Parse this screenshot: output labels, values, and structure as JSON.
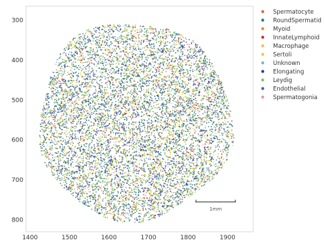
{
  "chart_data": {
    "type": "scatter",
    "title": "",
    "xlabel": "",
    "ylabel": "",
    "xlim": [
      1390,
      1965
    ],
    "ylim": [
      265,
      830
    ],
    "y_inverted": true,
    "grid": false,
    "legend_placement": "outside-right",
    "x_ticks": [
      1400,
      1500,
      1600,
      1700,
      1800,
      1900
    ],
    "y_ticks": [
      300,
      400,
      500,
      600,
      700,
      800
    ],
    "tissue": {
      "center_x": 1665,
      "center_y": 553,
      "radius_x": 245,
      "radius_y": 248
    },
    "series": [
      {
        "name": "Spermatocyte",
        "color": "#e06a3b"
      },
      {
        "name": "RoundSpermatid",
        "color": "#2a7f6f"
      },
      {
        "name": "Myoid",
        "color": "#f08a2a"
      },
      {
        "name": "InnateLymphoid",
        "color": "#c8322d"
      },
      {
        "name": "Macrophage",
        "color": "#f0c05a"
      },
      {
        "name": "Sertoli",
        "color": "#d8d43e"
      },
      {
        "name": "Unknown",
        "color": "#6fb7c9"
      },
      {
        "name": "Elongating",
        "color": "#2a3f88"
      },
      {
        "name": "Leydig",
        "color": "#8cc06a"
      },
      {
        "name": "Endothelial",
        "color": "#3d6aa8"
      },
      {
        "name": "Spermatogonia",
        "color": "#e89a9a"
      }
    ],
    "scalebar": {
      "label": "1mm",
      "length": 100,
      "x_start": 1820,
      "y": 755
    }
  }
}
